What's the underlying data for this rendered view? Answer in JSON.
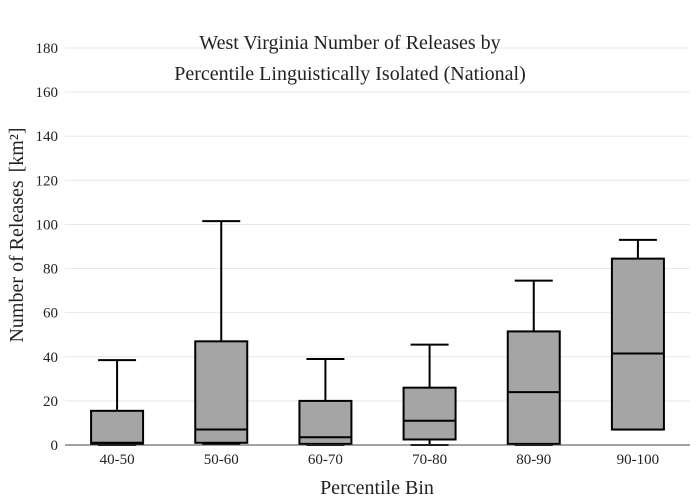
{
  "chart_data": {
    "type": "box",
    "title_lines": [
      "West Virginia Number of Releases by",
      "Percentile Linguistically Isolated (National)"
    ],
    "xlabel": "Percentile Bin",
    "ylabel": "Number of Releases",
    "ylabel_unit": "[km²]",
    "ylim": [
      0,
      180
    ],
    "yticks": [
      0,
      20,
      40,
      60,
      80,
      100,
      120,
      140,
      160,
      180
    ],
    "grid": true,
    "box_color": "#a5a5a5",
    "line_color": "#000000",
    "categories": [
      "40-50",
      "50-60",
      "60-70",
      "70-80",
      "80-90",
      "90-100"
    ],
    "boxes": [
      {
        "category": "40-50",
        "min": 0,
        "q1": 0.5,
        "median": 1,
        "q3": 15.5,
        "max": 38.5
      },
      {
        "category": "50-60",
        "min": 0.5,
        "q1": 1,
        "median": 7,
        "q3": 47,
        "max": 101.5
      },
      {
        "category": "60-70",
        "min": 0,
        "q1": 0.5,
        "median": 3.5,
        "q3": 20,
        "max": 39
      },
      {
        "category": "70-80",
        "min": 0,
        "q1": 2.5,
        "median": 11,
        "q3": 26,
        "max": 45.5
      },
      {
        "category": "80-90",
        "min": 0,
        "q1": 0.5,
        "median": 24,
        "q3": 51.5,
        "max": 74.5
      },
      {
        "category": "90-100",
        "min": 7,
        "q1": 7,
        "median": 41.5,
        "q3": 84.5,
        "max": 93
      }
    ]
  }
}
